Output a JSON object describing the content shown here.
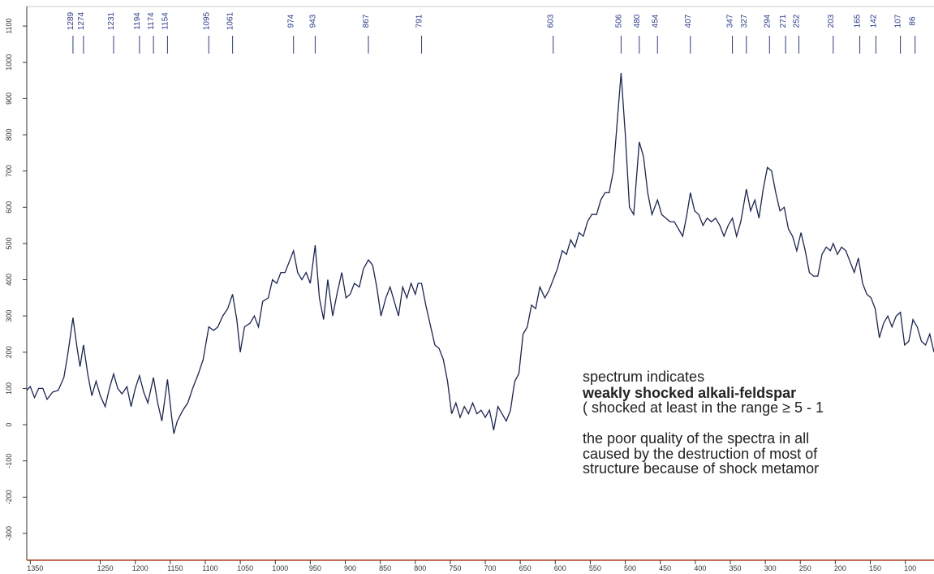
{
  "chart_data": {
    "type": "line",
    "color": "#1a2456",
    "label_color": "#2a3a90",
    "xlim": [
      1355,
      59
    ],
    "ylim": [
      -374,
      1154
    ],
    "xticks": [
      1350,
      1250,
      1200,
      1150,
      1100,
      1050,
      1000,
      950,
      900,
      850,
      800,
      750,
      700,
      650,
      600,
      550,
      500,
      450,
      400,
      350,
      300,
      250,
      200,
      150,
      100
    ],
    "yticks": [
      -300,
      -200,
      -100,
      0,
      100,
      200,
      300,
      400,
      500,
      600,
      700,
      800,
      900,
      1000,
      1100
    ],
    "peaks": [
      1289,
      1274,
      1231,
      1194,
      1174,
      1154,
      1095,
      1061,
      974,
      943,
      867,
      791,
      603,
      506,
      480,
      454,
      407,
      347,
      327,
      294,
      271,
      252,
      203,
      165,
      142,
      107,
      86
    ],
    "annotations": [
      "spectrum indicates",
      "weakly shocked alkali-feldspar",
      "( shocked at least in the range ≥ 5 - 1",
      "the poor quality of the spectra in all",
      "caused by the destruction of most of",
      "structure because of shock metamor"
    ],
    "x": [
      1355,
      1350,
      1344,
      1338,
      1332,
      1326,
      1318,
      1310,
      1302,
      1296,
      1289,
      1283,
      1279,
      1274,
      1268,
      1262,
      1256,
      1250,
      1243,
      1237,
      1231,
      1225,
      1219,
      1212,
      1206,
      1200,
      1194,
      1188,
      1182,
      1174,
      1168,
      1162,
      1154,
      1148,
      1145,
      1140,
      1132,
      1125,
      1118,
      1110,
      1103,
      1095,
      1088,
      1082,
      1075,
      1068,
      1061,
      1055,
      1050,
      1044,
      1036,
      1030,
      1024,
      1018,
      1010,
      1004,
      998,
      992,
      986,
      980,
      974,
      968,
      962,
      956,
      950,
      943,
      937,
      931,
      925,
      918,
      912,
      905,
      899,
      893,
      887,
      880,
      874,
      867,
      861,
      855,
      849,
      842,
      836,
      830,
      824,
      818,
      812,
      806,
      800,
      796,
      791,
      785,
      778,
      772,
      766,
      760,
      754,
      748,
      742,
      736,
      730,
      724,
      718,
      712,
      706,
      700,
      694,
      688,
      682,
      676,
      670,
      664,
      658,
      652,
      646,
      640,
      634,
      628,
      622,
      615,
      609,
      603,
      597,
      590,
      584,
      578,
      572,
      566,
      560,
      554,
      548,
      541,
      535,
      529,
      523,
      517,
      511,
      506,
      500,
      494,
      488,
      480,
      474,
      468,
      462,
      454,
      448,
      442,
      436,
      430,
      424,
      418,
      412,
      407,
      401,
      395,
      389,
      383,
      377,
      371,
      365,
      359,
      353,
      347,
      341,
      335,
      327,
      321,
      315,
      309,
      303,
      297,
      291,
      285,
      279,
      273,
      267,
      261,
      255,
      249,
      243,
      237,
      231,
      225,
      219,
      213,
      207,
      203,
      197,
      191,
      185,
      179,
      173,
      167,
      161,
      155,
      149,
      143,
      137,
      131,
      125,
      119,
      113,
      107,
      101,
      95,
      89,
      83,
      77,
      71,
      65,
      59
    ],
    "values": [
      95,
      105,
      75,
      100,
      100,
      70,
      90,
      95,
      130,
      200,
      295,
      210,
      160,
      220,
      140,
      80,
      120,
      80,
      50,
      100,
      140,
      100,
      85,
      105,
      50,
      100,
      135,
      90,
      60,
      130,
      60,
      10,
      125,
      20,
      -25,
      10,
      40,
      60,
      100,
      140,
      180,
      270,
      260,
      270,
      300,
      320,
      360,
      290,
      200,
      270,
      280,
      300,
      270,
      340,
      350,
      400,
      390,
      420,
      420,
      450,
      480,
      420,
      400,
      420,
      390,
      495,
      350,
      290,
      400,
      300,
      360,
      420,
      350,
      360,
      390,
      380,
      430,
      455,
      440,
      380,
      300,
      350,
      380,
      340,
      300,
      380,
      350,
      390,
      360,
      390,
      390,
      330,
      270,
      220,
      210,
      180,
      120,
      30,
      60,
      20,
      50,
      30,
      60,
      30,
      40,
      20,
      40,
      -15,
      50,
      30,
      10,
      40,
      120,
      140,
      250,
      270,
      330,
      320,
      380,
      350,
      370,
      400,
      430,
      480,
      470,
      510,
      490,
      530,
      520,
      560,
      580,
      580,
      620,
      640,
      640,
      700,
      850,
      970,
      800,
      600,
      580,
      780,
      740,
      640,
      580,
      620,
      580,
      570,
      560,
      560,
      540,
      520,
      580,
      640,
      590,
      580,
      550,
      570,
      560,
      570,
      550,
      520,
      550,
      570,
      520,
      560,
      650,
      590,
      620,
      570,
      650,
      710,
      700,
      640,
      590,
      600,
      540,
      520,
      480,
      530,
      480,
      420,
      410,
      410,
      470,
      490,
      480,
      500,
      470,
      490,
      480,
      450,
      420,
      460,
      390,
      360,
      350,
      320,
      240,
      280,
      300,
      270,
      300,
      310,
      220,
      230,
      290,
      270,
      230,
      220,
      250,
      200
    ]
  }
}
